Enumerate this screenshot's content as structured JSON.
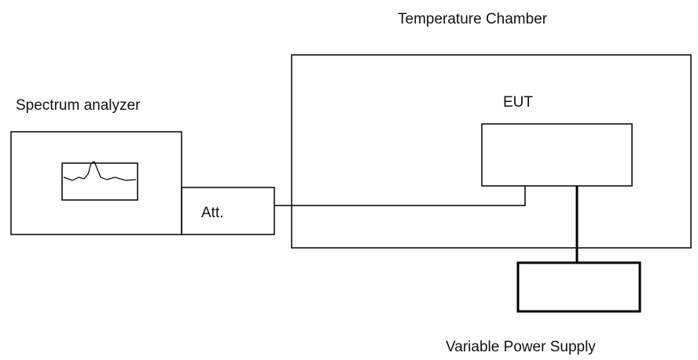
{
  "nodes": [
    {
      "id": "chamber",
      "label": "Temperature Chamber"
    },
    {
      "id": "analyzer",
      "label": "Spectrum analyzer"
    },
    {
      "id": "att",
      "label": "Att."
    },
    {
      "id": "eut",
      "label": "EUT"
    },
    {
      "id": "psu",
      "label": "Variable Power Supply"
    }
  ]
}
